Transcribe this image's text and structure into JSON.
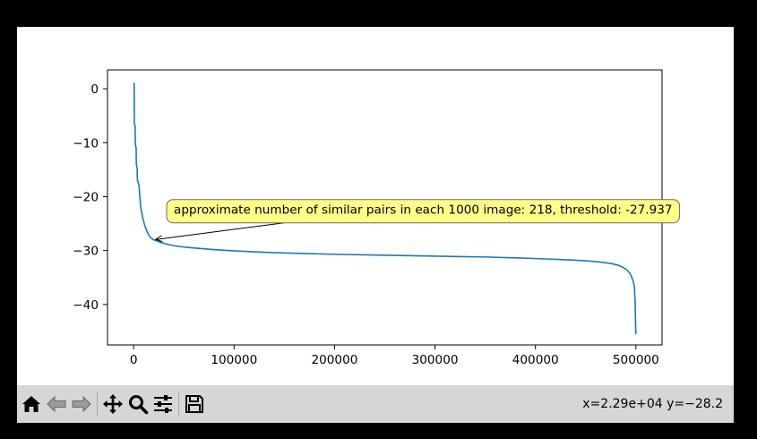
{
  "colors": {
    "background": "#000000",
    "figure": "#ffffff",
    "toolbar": "#d6d6d6",
    "line": "#1f77b4",
    "annotation_fill": "#ffff88",
    "annotation_edge": "#6b6b6b"
  },
  "toolbar": {
    "buttons": [
      {
        "name": "home",
        "icon": "home-icon"
      },
      {
        "name": "back",
        "icon": "arrow-left-icon"
      },
      {
        "name": "forward",
        "icon": "arrow-right-icon"
      },
      {
        "name": "pan",
        "icon": "move-icon"
      },
      {
        "name": "zoom",
        "icon": "magnifier-icon"
      },
      {
        "name": "configure-subplots",
        "icon": "sliders-icon"
      },
      {
        "name": "save",
        "icon": "floppy-disk-icon"
      }
    ],
    "coords": "x=2.29e+04 y=−28.2"
  },
  "chart_data": {
    "type": "line",
    "title": "",
    "xlabel": "",
    "ylabel": "",
    "xlim": [
      -26000,
      526000
    ],
    "ylim": [
      -47.5,
      3.5
    ],
    "grid": false,
    "xticks": [
      0,
      100000,
      200000,
      300000,
      400000,
      500000
    ],
    "xtick_labels": [
      "0",
      "100000",
      "200000",
      "300000",
      "400000",
      "500000"
    ],
    "yticks": [
      0,
      -10,
      -20,
      -30,
      -40
    ],
    "ytick_labels": [
      "0",
      "−10",
      "−20",
      "−30",
      "−40"
    ],
    "series": [
      {
        "x": [
          0,
          600,
          700,
          1500,
          1700,
          2500,
          2700,
          3500,
          3700,
          4300,
          5300,
          6000,
          7000,
          8000,
          9000,
          11000,
          13000,
          15000,
          17000,
          19000,
          21000,
          22900,
          27000,
          33000,
          40000,
          50000,
          62000,
          75000,
          90000,
          110000,
          140000,
          170000,
          200000,
          230000,
          260000,
          290000,
          320000,
          350000,
          380000,
          410000,
          430000,
          450000,
          465000,
          475000,
          482000,
          487000,
          491000,
          494000,
          496000,
          497500,
          498500,
          499200,
          499600,
          499900
        ],
        "y": [
          1.0,
          1.0,
          -6.3,
          -7.0,
          -10.3,
          -11.0,
          -14.0,
          -14.8,
          -16.8,
          -17.2,
          -17.9,
          -19.6,
          -21.9,
          -22.9,
          -23.9,
          -25.3,
          -26.3,
          -27.1,
          -27.6,
          -27.9,
          -28.1,
          -28.2,
          -28.5,
          -28.8,
          -29.1,
          -29.35,
          -29.55,
          -29.75,
          -29.95,
          -30.15,
          -30.4,
          -30.55,
          -30.7,
          -30.8,
          -30.9,
          -31.0,
          -31.1,
          -31.2,
          -31.35,
          -31.55,
          -31.7,
          -31.9,
          -32.15,
          -32.4,
          -32.7,
          -33.1,
          -33.6,
          -34.2,
          -35.0,
          -35.8,
          -36.8,
          -39.5,
          -43.0,
          -45.5
        ]
      }
    ],
    "annotation": {
      "text": "approximate number of similar pairs in each 1000 image: 218, threshold: -27.937",
      "point": [
        22000,
        -27.937
      ]
    }
  }
}
